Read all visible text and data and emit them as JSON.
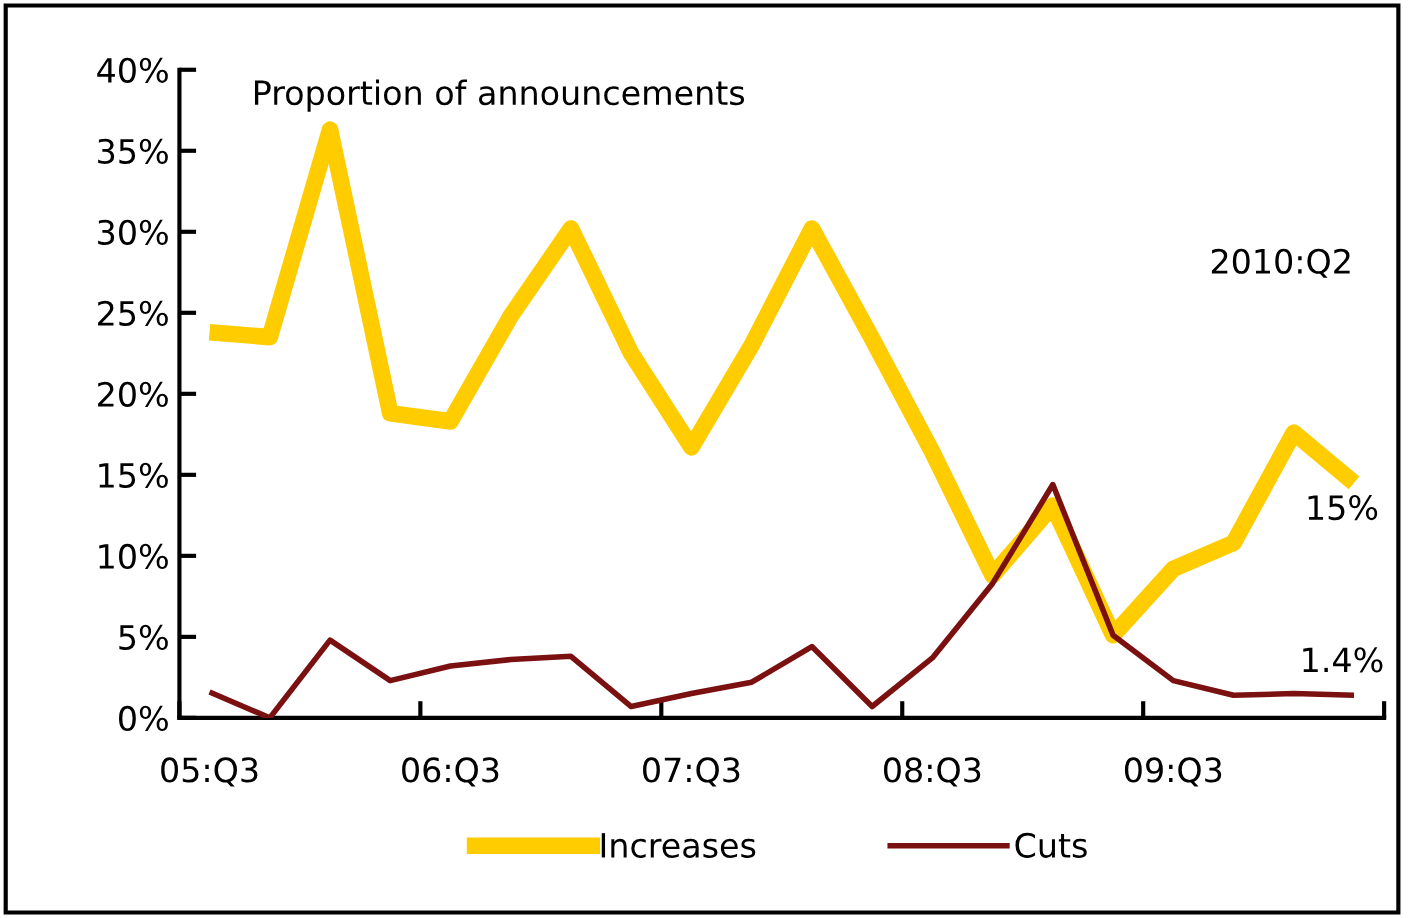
{
  "chart_data": {
    "type": "line",
    "title": "Proportion of announcements",
    "categories": [
      "05:Q3",
      null,
      null,
      null,
      "06:Q3",
      null,
      null,
      null,
      "07:Q3",
      null,
      null,
      null,
      "08:Q3",
      null,
      null,
      null,
      "09:Q3",
      null,
      null,
      null
    ],
    "series": [
      {
        "name": "Increases",
        "color": "#ffcc00",
        "values": [
          23.8,
          23.5,
          36.3,
          18.8,
          18.3,
          24.8,
          30.2,
          22.5,
          16.7,
          23.0,
          30.2,
          23.4,
          16.4,
          8.8,
          13.1,
          5.1,
          9.2,
          10.8,
          17.6,
          14.5
        ]
      },
      {
        "name": "Cuts",
        "color": "#7b1010",
        "values": [
          1.6,
          0,
          4.8,
          2.3,
          3.2,
          3.6,
          3.8,
          0.7,
          1.5,
          2.2,
          4.4,
          0.7,
          3.7,
          8.3,
          14.4,
          5.1,
          2.3,
          1.4,
          1.5,
          1.4
        ]
      }
    ],
    "ylim": [
      0,
      40
    ],
    "yticks": [
      {
        "value": 0,
        "label": "0%"
      },
      {
        "value": 5,
        "label": "5%"
      },
      {
        "value": 10,
        "label": "10%"
      },
      {
        "value": 15,
        "label": "15%"
      },
      {
        "value": 20,
        "label": "20%"
      },
      {
        "value": 25,
        "label": "25%"
      },
      {
        "value": 30,
        "label": "30%"
      },
      {
        "value": 35,
        "label": "35%"
      },
      {
        "value": 40,
        "label": "40%"
      }
    ],
    "annotations": [
      "2010:Q2",
      "15%",
      "1.4%"
    ],
    "legend": "bottom",
    "grid": false,
    "marker": "none",
    "line_style": "solid"
  }
}
